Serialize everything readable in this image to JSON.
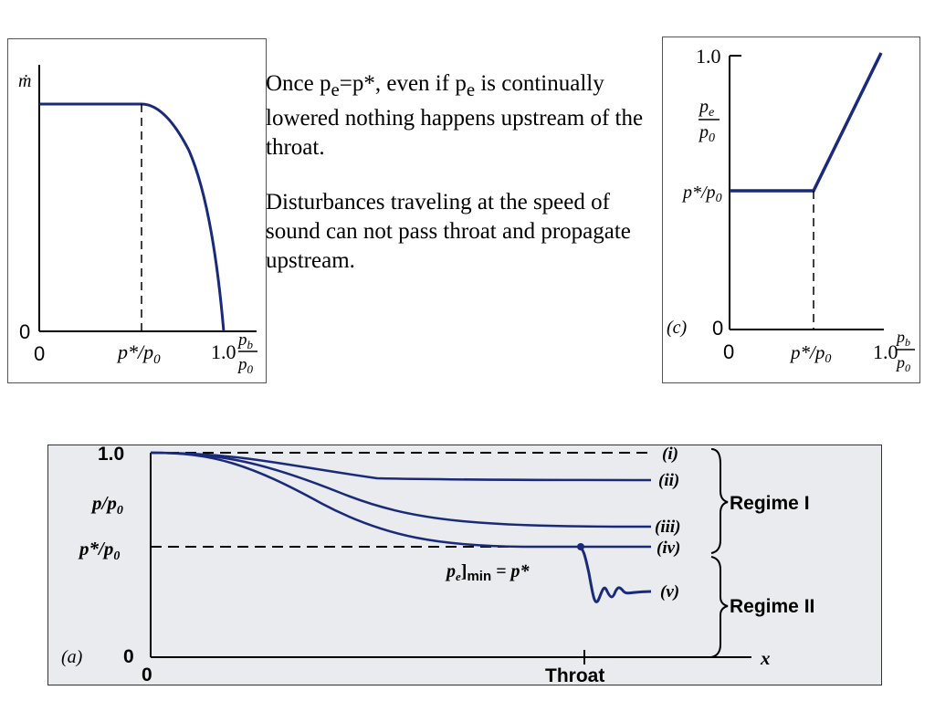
{
  "text": {
    "p1_a": "Once p",
    "p1_sub1": "e",
    "p1_b": "=p*, even if p",
    "p1_sub2": "e",
    "p1_c": " is continually lowered nothing happens upstream of the throat.",
    "p2": "Disturbances traveling at the speed of sound can not pass throat and propagate upstream."
  },
  "left_plot": {
    "y_symbol": "ṁ",
    "y_zero": "0",
    "x_zero": "0",
    "x_mid_label": "p*/p",
    "x_mid_sub": "0",
    "x_end": "1.0",
    "x_frac_num": "p",
    "x_frac_num_sub": "b",
    "x_frac_den": "p",
    "x_frac_den_sub": "0"
  },
  "right_plot": {
    "y_top": "1.0",
    "y_frac_num": "p",
    "y_frac_num_sub": "e",
    "y_frac_den": "p",
    "y_frac_den_sub": "0",
    "y_mid_label": "p*/p",
    "y_mid_sub": "0",
    "panel_tag": "(c)",
    "y_zero": "0",
    "x_zero": "0",
    "x_mid_label": "p*/p",
    "x_mid_sub": "0",
    "x_end": "1.0",
    "x_frac_num": "p",
    "x_frac_num_sub": "b",
    "x_frac_den": "p",
    "x_frac_den_sub": "0"
  },
  "bottom_plot": {
    "y_top": "1.0",
    "y_ratio": "p/p",
    "y_ratio_sub": "0",
    "y_star": "p*/p",
    "y_star_sub": "0",
    "panel_tag": "(a)",
    "y_zero": "0",
    "x_zero": "0",
    "x_label": "Throat",
    "x_axis": "x",
    "curve_labels": [
      "(i)",
      "(ii)",
      "(iii)",
      "(iv)",
      "(v)"
    ],
    "regime1": "Regime I",
    "regime2": "Regime II",
    "annot_a": "p",
    "annot_sub_e": "e",
    "annot_b": "]",
    "annot_sub_min": "min",
    "annot_c": " = p*"
  },
  "colors": {
    "curve": "#1a2a7a",
    "axis": "#000000",
    "panel_bg": "#e9ebee"
  }
}
